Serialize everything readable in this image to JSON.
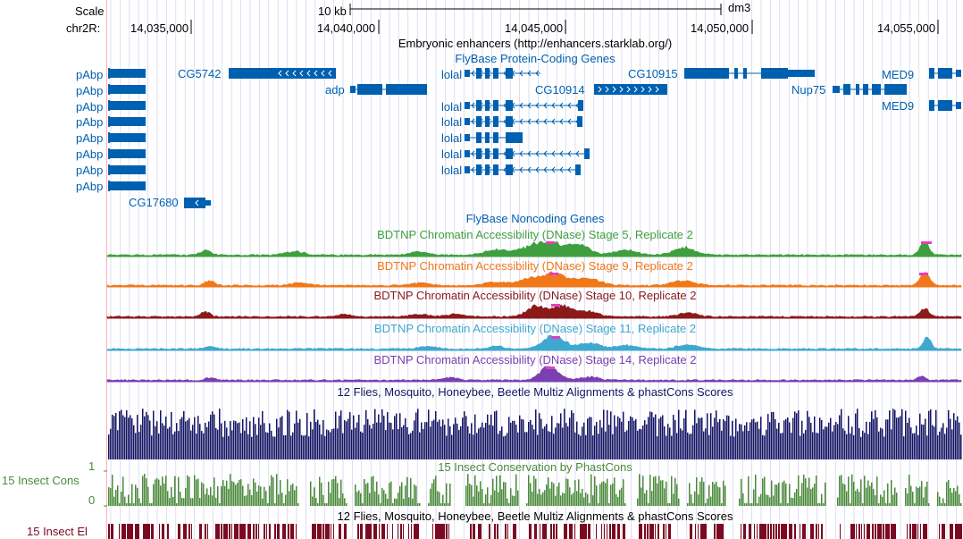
{
  "ruler": {
    "scale_label": "Scale",
    "chrom_label": "chr2R:",
    "scale_bar": "10 kb",
    "assembly": "dm3",
    "ticks": [
      "14,035,000",
      "14,040,000",
      "14,045,000",
      "14,050,000",
      "14,055,000"
    ]
  },
  "tracks": {
    "enhancers": "Embryonic enhancers (http://enhancers.starklab.org/)",
    "coding": "FlyBase Protein-Coding Genes",
    "noncoding": "FlyBase Noncoding Genes",
    "dnase_s5": "BDTNP Chromatin Accessibility (DNase) Stage 5, Replicate 2",
    "dnase_s9": "BDTNP Chromatin Accessibility (DNase) Stage 9, Replicate 2",
    "dnase_s10": "BDTNP Chromatin Accessibility (DNase) Stage 10, Replicate 2",
    "dnase_s11": "BDTNP Chromatin Accessibility (DNase) Stage 11, Replicate 2",
    "dnase_s14": "BDTNP Chromatin Accessibility (DNase) Stage 14, Replicate 2",
    "multiz": "12 Flies, Mosquito, Honeybee, Beetle Multiz Alignments & phastCons Scores",
    "phastcons": "15 Insect Conservation by PhastCons",
    "multiz2": "12 Flies, Mosquito, Honeybee, Beetle Multiz Alignments & phastCons Scores"
  },
  "side_labels": {
    "insect_cons": "15 Insect Cons",
    "insect_el": "15 Insect El",
    "cons_max": "1",
    "cons_min": "0"
  },
  "genes": {
    "pAbp": "pAbp",
    "CG5742": "CG5742",
    "adp": "adp",
    "lolal": "lolal",
    "CG10915": "CG10915",
    "CG10914": "CG10914",
    "Nup75": "Nup75",
    "MED9": "MED9",
    "CG17680": "CG17680"
  },
  "colors": {
    "gene": "#0060b0",
    "s5": "#3f9f3f",
    "s9": "#f07818",
    "s10": "#8b1a1a",
    "s11": "#3fa8d0",
    "s14": "#7a3fb0",
    "peak": "#e040c0",
    "multiz": "#141464",
    "phastcons": "#4a8a3a",
    "elements": "#7a0a22",
    "grid": "#c8c8f0",
    "ruler_line": "#ffb0b0"
  }
}
